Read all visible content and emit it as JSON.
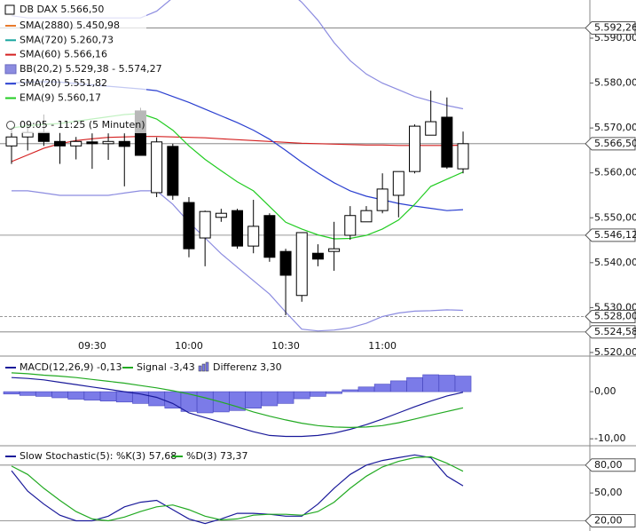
{
  "chart_data": [
    {
      "type": "candlestick",
      "title": "DB DAX 5.566,50",
      "subtitle": "09:05 - 11:25 (5 Minuten)",
      "categories": [
        null,
        null,
        null,
        null,
        null,
        "09:30",
        null,
        null,
        null,
        null,
        null,
        "10:00",
        null,
        null,
        null,
        null,
        null,
        "10:30",
        null,
        null,
        null,
        null,
        null,
        "11:00",
        null,
        null,
        null,
        null,
        null
      ],
      "open": [
        5566,
        5568,
        5569,
        5567,
        5566,
        5566.9,
        5566.5,
        5567.0,
        5573.8,
        5555.6,
        5565.9,
        5553.4,
        5545.5,
        5550.1,
        5551.6,
        5543.7,
        5550.5,
        5542.5,
        5532.7,
        5542.1,
        5542.5,
        5546.1,
        5549.1,
        5551.6,
        5555.0,
        5560.3,
        5568.4,
        5572.4,
        5560.9
      ],
      "high": [
        5570,
        5571,
        5573,
        5569,
        5568,
        5568.8,
        5568.8,
        5568.8,
        5574.5,
        5567.9,
        5566.5,
        5554.6,
        5551.6,
        5552.0,
        5552.0,
        5554.0,
        5551.0,
        5543.1,
        5546.7,
        5544.1,
        5549.1,
        5552.6,
        5552.6,
        5559.9,
        5560.3,
        5570.8,
        5578.3,
        5576.8,
        5569.2
      ],
      "low": [
        5562,
        5565,
        5566,
        5562,
        5563,
        5560.9,
        5562.9,
        5557.0,
        5563.9,
        5554.6,
        5554.0,
        5541.2,
        5539.2,
        5549.1,
        5543.1,
        5542.1,
        5540.2,
        5528.3,
        5531.3,
        5539.2,
        5538.2,
        5545.1,
        5549.1,
        5551.0,
        5550.1,
        5559.9,
        5568.4,
        5560.9,
        5559.9
      ],
      "close": [
        5568,
        5569,
        5567,
        5566,
        5567,
        5566.5,
        5567.0,
        5565.9,
        5563.9,
        5566.9,
        5555.0,
        5543.1,
        5551.4,
        5551.0,
        5543.7,
        5548.1,
        5541.2,
        5537.2,
        5546.7,
        5540.8,
        5543.1,
        5550.5,
        5551.6,
        5556.4,
        5560.3,
        5570.4,
        5571.4,
        5561.3,
        5566.5
      ],
      "series": [
        {
          "name": "SMA(2880) 5.450,98",
          "color": "#e87a2c"
        },
        {
          "name": "SMA(720) 5.260,73",
          "color": "#1aa6a0"
        },
        {
          "name": "SMA(60) 5.566,16",
          "color": "#d42020",
          "values": [
            5562.5,
            5564,
            5565.5,
            5566.5,
            5567.2,
            5567.6,
            5567.9,
            5568.0,
            5568.1,
            5568.1,
            5568.0,
            5567.9,
            5567.8,
            5567.6,
            5567.4,
            5567.2,
            5567.0,
            5566.8,
            5566.6,
            5566.5,
            5566.4,
            5566.3,
            5566.2,
            5566.2,
            5566.1,
            5566.1,
            5566.1,
            5566.1,
            5566.16
          ]
        },
        {
          "name": "BB(20,2) 5.529,38 - 5.574,27",
          "color": "#8c8ce0",
          "upper": [
            5595,
            5594.5,
            5594.5,
            5594.5,
            5594.5,
            5594.5,
            5594.5,
            5594.5,
            5594.5,
            5596,
            5599,
            5602,
            5604,
            5606,
            5607,
            5606,
            5604,
            5601,
            5598,
            5594,
            5589,
            5585,
            5582,
            5580,
            5578.5,
            5577,
            5576,
            5575,
            5574.27
          ],
          "lower": [
            5556,
            5556,
            5555.5,
            5555,
            5555,
            5555,
            5555,
            5555.5,
            5556,
            5556,
            5553,
            5549,
            5545.5,
            5542,
            5539,
            5536,
            5533,
            5529,
            5525.2,
            5524.8,
            5525,
            5525.5,
            5526.5,
            5528,
            5528.8,
            5529.2,
            5529.3,
            5529.5,
            5529.38
          ]
        },
        {
          "name": "SMA(20) 5.551,82",
          "color": "#2a3fd0",
          "values": [
            5580,
            5580.2,
            5580.3,
            5580.2,
            5579.9,
            5579.6,
            5579.3,
            5579,
            5578.7,
            5578.3,
            5577,
            5575.7,
            5574.2,
            5572.7,
            5571.2,
            5569.5,
            5567.5,
            5565,
            5562.4,
            5560,
            5557.8,
            5556,
            5554.8,
            5554,
            5553.2,
            5552.6,
            5552.1,
            5551.6,
            5551.82
          ]
        },
        {
          "name": "EMA(9) 5.560,17",
          "color": "#22cc22",
          "values": [
            5570,
            5570.5,
            5570.8,
            5571,
            5571.5,
            5572,
            5572.5,
            5573,
            5573.2,
            5572,
            5569.5,
            5566,
            5563,
            5560.5,
            5558,
            5556,
            5552.5,
            5549,
            5547.5,
            5546.2,
            5545.3,
            5545.4,
            5546.1,
            5547.5,
            5549.5,
            5553,
            5557,
            5558.6,
            5560.17
          ]
        }
      ],
      "ylim": [
        5519.4,
        5598.5
      ],
      "yticks": [
        {
          "value": 5520,
          "label": "5.520,00"
        },
        {
          "value": 5530,
          "label": "5.530,00"
        },
        {
          "value": 5540,
          "label": "5.540,00"
        },
        {
          "value": 5550,
          "label": "5.550,00"
        },
        {
          "value": 5560,
          "label": "5.560,00"
        },
        {
          "value": 5570,
          "label": "5.570,00"
        },
        {
          "value": 5580,
          "label": "5.580,00"
        },
        {
          "value": 5590,
          "label": "5.590,00"
        }
      ],
      "levels": [
        {
          "value": 5592.26,
          "label": "5.592,26"
        },
        {
          "value": 5566.5,
          "label": "5.566,50"
        },
        {
          "value": 5546.12,
          "label": "5.546,12"
        },
        {
          "value": 5528,
          "label": "5.528,00",
          "dashed": true
        },
        {
          "value": 5524.58,
          "label": "5.524,58"
        }
      ]
    },
    {
      "type": "line",
      "series": [
        {
          "name": "MACD(12,26,9) -0,13",
          "color": "#1a1a9a",
          "values": [
            3,
            2.8,
            2.5,
            2,
            1.5,
            1,
            0.5,
            0,
            -0.5,
            -1.2,
            -2.5,
            -4.5,
            -5.5,
            -6.5,
            -7.5,
            -8.5,
            -9.3,
            -9.5,
            -9.5,
            -9.3,
            -8.8,
            -8,
            -7,
            -5.8,
            -4.5,
            -3.2,
            -2,
            -0.9,
            -0.13
          ]
        },
        {
          "name": "Signal -3,43",
          "color": "#22aa22",
          "values": [
            4,
            3.8,
            3.5,
            3.3,
            3,
            2.6,
            2.2,
            1.8,
            1.3,
            0.8,
            0.2,
            -0.5,
            -1.3,
            -2.2,
            -3.2,
            -4.3,
            -5.2,
            -6,
            -6.7,
            -7.2,
            -7.5,
            -7.6,
            -7.5,
            -7.2,
            -6.6,
            -5.8,
            -5,
            -4.2,
            -3.43
          ]
        },
        {
          "name": "Differenz 3,30",
          "color": "#7b7be8",
          "kind": "bar",
          "values": [
            -0.5,
            -0.8,
            -1,
            -1.3,
            -1.6,
            -1.8,
            -2,
            -2.2,
            -2.5,
            -3,
            -3.5,
            -4.2,
            -4.5,
            -4.3,
            -4,
            -3.5,
            -3,
            -2.5,
            -1.5,
            -1,
            -0.4,
            0.4,
            1,
            1.6,
            2.3,
            3,
            3.6,
            3.5,
            3.3
          ]
        }
      ],
      "ylim": [
        -11.1,
        6.8
      ],
      "yticks": [
        {
          "value": 0,
          "label": "0,00"
        },
        {
          "value": -10,
          "label": "-10,00"
        }
      ]
    },
    {
      "type": "line",
      "series": [
        {
          "name": "Slow Stochastic(5): %K(3) 57,68",
          "color": "#1a1a9a",
          "values": [
            74,
            52,
            38,
            26,
            20,
            20,
            25,
            35,
            40,
            42,
            32,
            22,
            17,
            22,
            28,
            28,
            27,
            25,
            25,
            38,
            55,
            70,
            80,
            85,
            88,
            91,
            88,
            68,
            57.68
          ]
        },
        {
          "name": "%D(3) 73,37",
          "color": "#22aa22",
          "values": [
            79,
            70,
            55,
            42,
            30,
            22,
            20,
            24,
            30,
            35,
            37,
            32,
            25,
            21,
            22,
            26,
            27,
            27,
            26,
            30,
            40,
            55,
            68,
            78,
            84,
            88,
            89,
            82,
            73.37
          ]
        }
      ],
      "ylim": [
        9,
        98
      ],
      "yticks": [
        {
          "value": 50,
          "label": "50,00"
        }
      ],
      "levels": [
        {
          "value": 80,
          "label": "80,00"
        },
        {
          "value": 20,
          "label": "20,00"
        }
      ]
    }
  ]
}
